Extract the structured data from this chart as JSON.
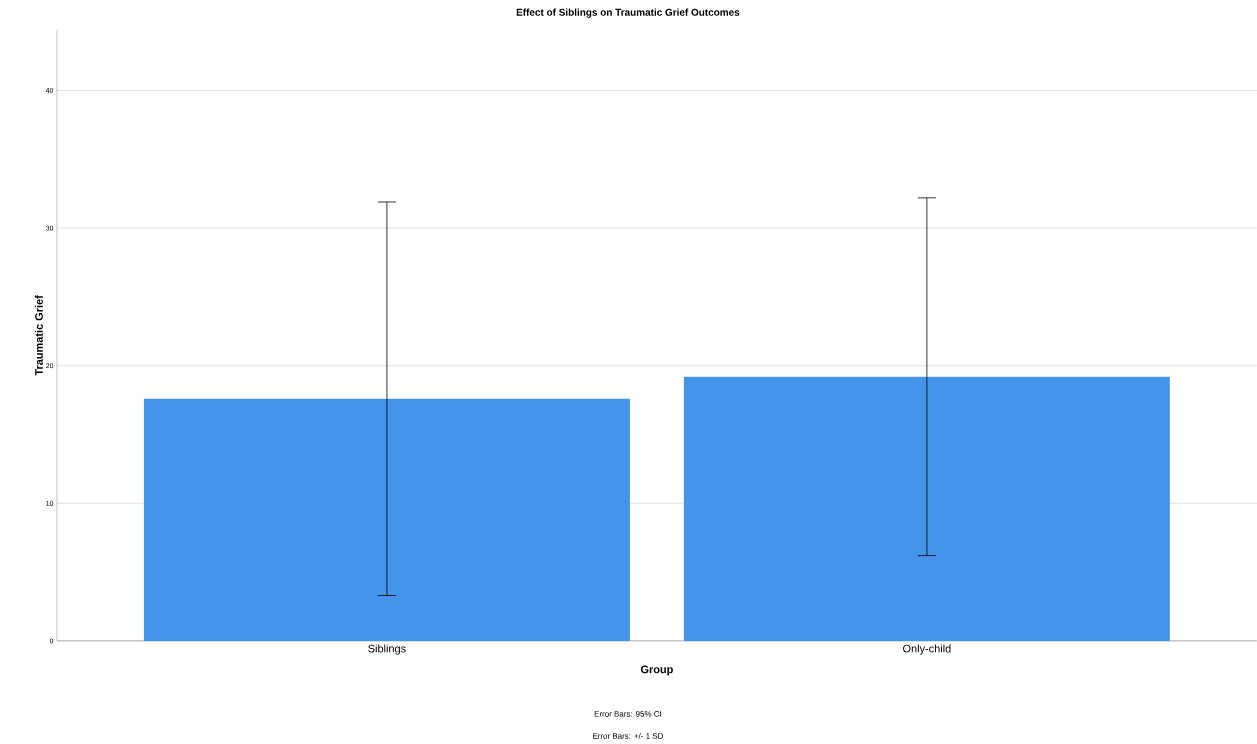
{
  "chart_data": {
    "type": "bar",
    "title": "Effect of Siblings on Traumatic Grief Outcomes",
    "xlabel": "Group",
    "ylabel": "Traumatic Grief",
    "categories": [
      "Siblings",
      "Only-child"
    ],
    "values": [
      17.6,
      19.2
    ],
    "errors": [
      14.3,
      13.0
    ],
    "color": "#4394ea",
    "ylim": [
      0,
      44.4
    ],
    "yticks": [
      0,
      10,
      20,
      30,
      40
    ],
    "grid": "y",
    "annotations": [
      "Error Bars: 95% CI",
      "Error Bars: +/- 1 SD"
    ]
  }
}
